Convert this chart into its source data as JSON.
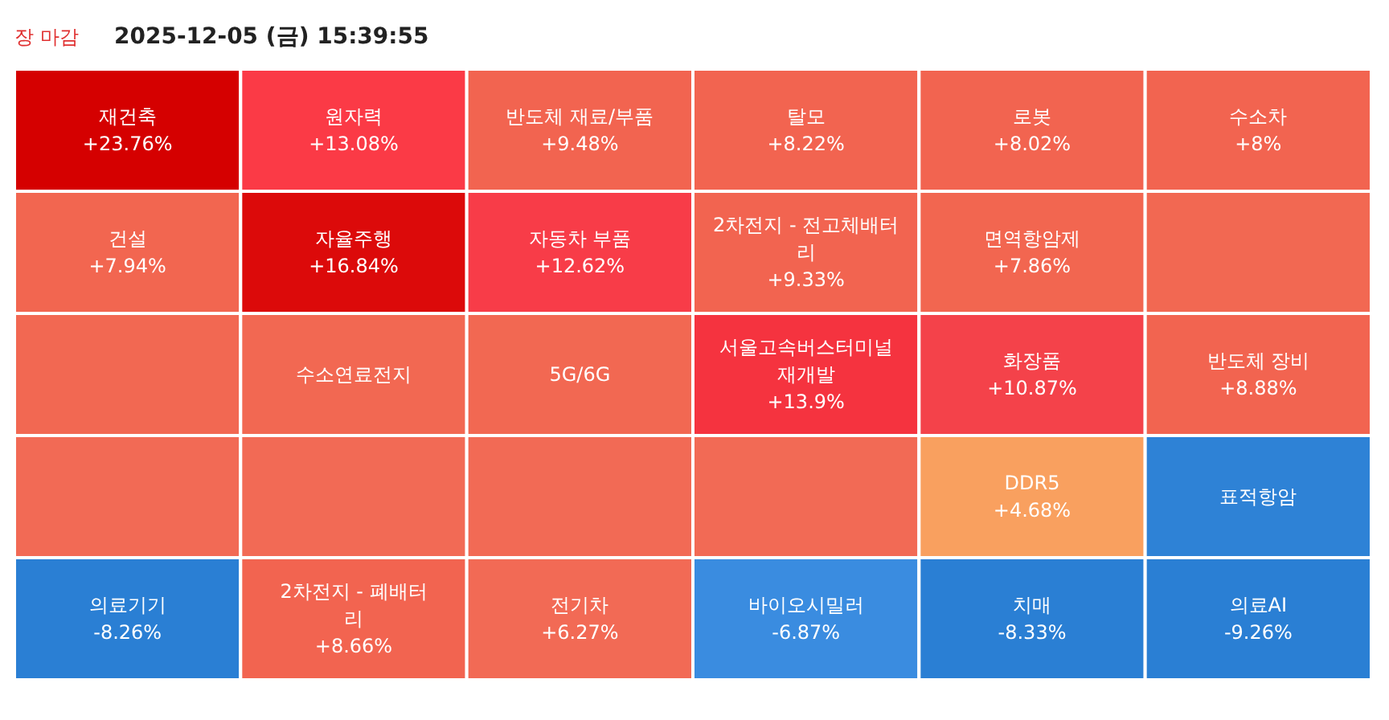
{
  "chart_data": {
    "type": "other",
    "title": "2025-12-05 (금) 15:39:55",
    "annotations": [
      "장 마감"
    ],
    "categories": [
      "재건축",
      "원자력",
      "반도체 재료/부품",
      "탈모",
      "로봇",
      "수소차",
      "건설",
      "자율주행",
      "자동차 부품",
      "2차전지 - 전고체배터리",
      "면역항암제",
      null,
      null,
      "수소연료전지",
      "5G/6G",
      "서울고속버스터미널 재개발",
      "화장품",
      "반도체 장비",
      null,
      null,
      null,
      null,
      "DDR5",
      "표적항암",
      "의료기기",
      "2차전지 - 폐배터리",
      "전기차",
      "바이오시밀러",
      "치매",
      "의료AI"
    ],
    "values": [
      23.76,
      13.08,
      9.48,
      8.22,
      8.02,
      8,
      7.94,
      16.84,
      12.62,
      9.33,
      7.86,
      null,
      null,
      null,
      null,
      13.9,
      10.87,
      8.88,
      null,
      null,
      null,
      null,
      4.68,
      null,
      -8.26,
      8.66,
      6.27,
      -6.87,
      -8.33,
      -9.26
    ],
    "value_labels": [
      "+23.76%",
      "+13.08%",
      "+9.48%",
      "+8.22%",
      "+8.02%",
      "+8%",
      "+7.94%",
      "+16.84%",
      "+12.62%",
      "+9.33%",
      "+7.86%",
      null,
      null,
      null,
      null,
      "+13.9%",
      "+10.87%",
      "+8.88%",
      null,
      null,
      null,
      null,
      "+4.68%",
      null,
      "-8.26%",
      "+8.66%",
      "+6.27%",
      "-6.87%",
      "-8.33%",
      "-9.26%"
    ],
    "colors": [
      "#d50000",
      "#fb3a46",
      "#f26450",
      "#f26450",
      "#f26450",
      "#f26450",
      "#f26650",
      "#dc0a0a",
      "#f83c48",
      "#f26450",
      "#f26650",
      "#f26852",
      "#f26852",
      "#f26852",
      "#f26852",
      "#f5333f",
      "#f4424a",
      "#f26450",
      "#f26a55",
      "#f26a55",
      "#f26a55",
      "#f26a55",
      "#f9a05f",
      "#2e82d6",
      "#2a7fd4",
      "#f26450",
      "#f26a55",
      "#3a8ce0",
      "#2a7fd4",
      "#2a7fd4"
    ]
  }
}
